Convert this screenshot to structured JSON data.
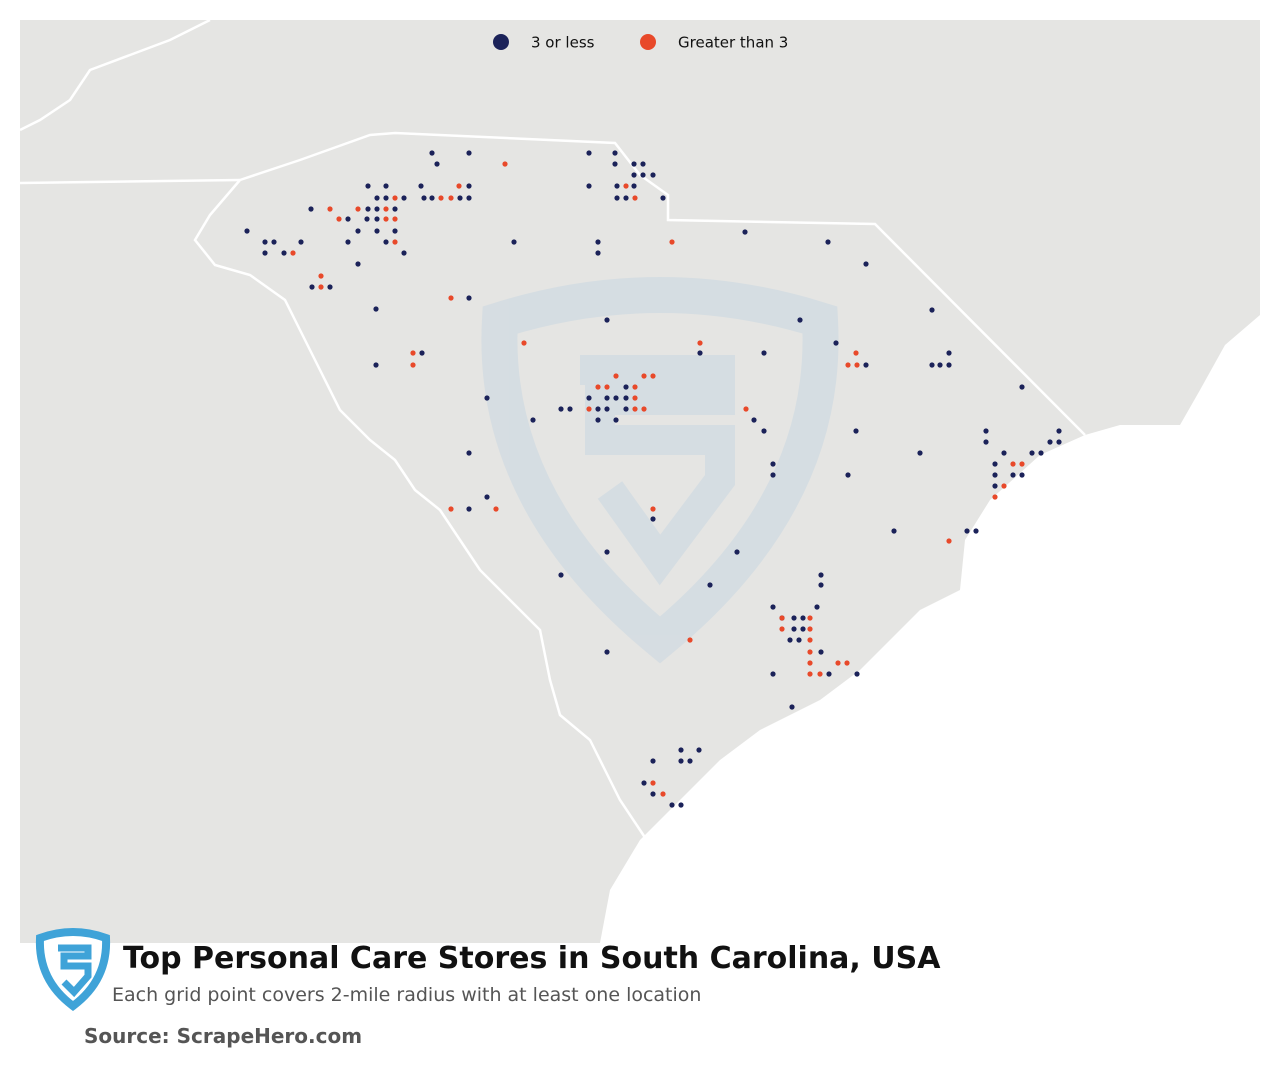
{
  "legend": {
    "items": [
      {
        "label": "3 or less",
        "color": "#1b2259"
      },
      {
        "label": "Greater than 3",
        "color": "#e8492a"
      }
    ]
  },
  "title": "Top Personal Care Stores in South Carolina, USA",
  "subtitle": "Each grid point covers 2-mile radius with at least one location",
  "source": "Source: ScrapeHero.com"
}
